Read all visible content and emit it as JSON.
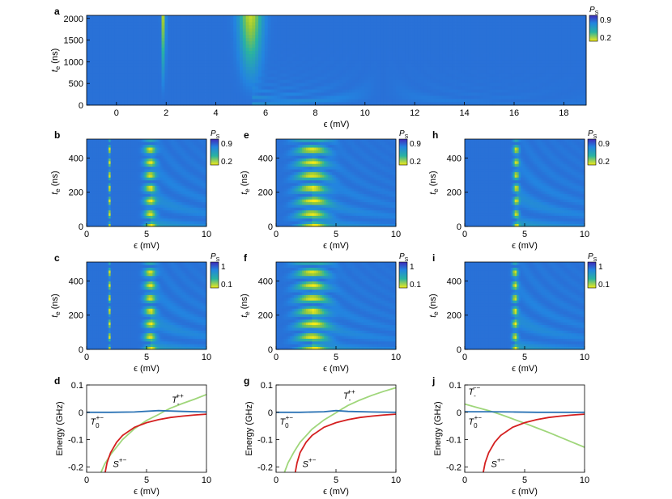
{
  "colors": {
    "map_low": "#f4ea18",
    "map_mid1": "#2ab3a0",
    "map_mid2": "#2384e0",
    "map_high": "#3e2bb8",
    "line_blue": "#2b73b5",
    "line_red": "#d41f1f",
    "line_green": "#9fd67a"
  },
  "chart_data": [
    {
      "id": "a",
      "type": "heatmap",
      "letter": "a",
      "xlabel": "ϵ (mV)",
      "ylabel_main": "t",
      "ylabel_sub": "e",
      "ylabel_unit": " (ns)",
      "xlim": [
        -1.2,
        18.9
      ],
      "ylim": [
        0,
        2070
      ],
      "xticks": [
        0,
        2,
        4,
        6,
        8,
        10,
        12,
        14,
        16,
        18
      ],
      "yticks": [
        0,
        500,
        1000,
        1500,
        2000
      ],
      "resonances": [
        {
          "eps": 1.9,
          "width": 0.05,
          "k": 0.35
        },
        {
          "eps": 5.4,
          "width": 0.3,
          "k": 0.6
        }
      ],
      "colorbar": {
        "label_main": "P",
        "label_sub": "S",
        "ticks": [
          0.9,
          0.2
        ]
      }
    },
    {
      "id": "b",
      "type": "heatmap",
      "letter": "b",
      "xlabel": "ϵ (mV)",
      "ylabel_main": "t",
      "ylabel_sub": "e",
      "ylabel_unit": " (ns)",
      "xlim": [
        0,
        10
      ],
      "ylim": [
        0,
        510
      ],
      "xticks": [
        0,
        5,
        10
      ],
      "yticks": [
        0,
        200,
        400
      ],
      "resonances": [
        {
          "eps": 1.9,
          "width": 0.06,
          "k": 0.35
        },
        {
          "eps": 5.3,
          "width": 0.32,
          "k": 0.5
        }
      ],
      "colorbar": {
        "label_main": "P",
        "label_sub": "S",
        "ticks": [
          0.9,
          0.2
        ]
      }
    },
    {
      "id": "e",
      "type": "heatmap",
      "letter": "e",
      "xlabel": "ϵ (mV)",
      "ylabel_main": "t",
      "ylabel_sub": "e",
      "ylabel_unit": " (ns)",
      "xlim": [
        0,
        10
      ],
      "ylim": [
        0,
        510
      ],
      "xticks": [
        0,
        5,
        10
      ],
      "yticks": [
        0,
        200,
        400
      ],
      "resonances": [
        {
          "eps": 3.0,
          "width": 0.85,
          "k": 0.5
        }
      ],
      "colorbar": {
        "label_main": "P",
        "label_sub": "S",
        "ticks": [
          0.9,
          0.2
        ]
      }
    },
    {
      "id": "h",
      "type": "heatmap",
      "letter": "h",
      "xlabel": "ϵ (mV)",
      "ylabel_main": "t",
      "ylabel_sub": "e",
      "ylabel_unit": " (ns)",
      "xlim": [
        0,
        10
      ],
      "ylim": [
        0,
        510
      ],
      "xticks": [
        0,
        5,
        10
      ],
      "yticks": [
        0,
        200,
        400
      ],
      "resonances": [
        {
          "eps": 4.3,
          "width": 0.16,
          "k": 0.9
        }
      ],
      "colorbar": {
        "label_main": "P",
        "label_sub": "S",
        "ticks": [
          0.9,
          0.2
        ]
      }
    },
    {
      "id": "c",
      "type": "heatmap",
      "letter": "c",
      "xlabel": "ϵ (mV)",
      "ylabel_main": "t",
      "ylabel_sub": "e",
      "ylabel_unit": " (ns)",
      "xlim": [
        0,
        10
      ],
      "ylim": [
        0,
        510
      ],
      "xticks": [
        0,
        5,
        10
      ],
      "yticks": [
        0,
        200,
        400
      ],
      "resonances": [
        {
          "eps": 1.9,
          "width": 0.06,
          "k": 0.35
        },
        {
          "eps": 5.3,
          "width": 0.32,
          "k": 0.5
        }
      ],
      "colorbar": {
        "label_main": "P",
        "label_sub": "S",
        "ticks": [
          1,
          0.1
        ]
      }
    },
    {
      "id": "f",
      "type": "heatmap",
      "letter": "f",
      "xlabel": "ϵ (mV)",
      "ylabel_main": "t",
      "ylabel_sub": "e",
      "ylabel_unit": " (ns)",
      "xlim": [
        0,
        10
      ],
      "ylim": [
        0,
        510
      ],
      "xticks": [
        0,
        5,
        10
      ],
      "yticks": [
        0,
        200,
        400
      ],
      "resonances": [
        {
          "eps": 3.0,
          "width": 0.85,
          "k": 0.5
        }
      ],
      "colorbar": {
        "label_main": "P",
        "label_sub": "S",
        "ticks": [
          1,
          0.1
        ]
      }
    },
    {
      "id": "i",
      "type": "heatmap",
      "letter": "i",
      "xlabel": "ϵ (mV)",
      "ylabel_main": "t",
      "ylabel_sub": "e",
      "ylabel_unit": " (ns)",
      "xlim": [
        0,
        10
      ],
      "ylim": [
        0,
        510
      ],
      "xticks": [
        0,
        5,
        10
      ],
      "yticks": [
        0,
        200,
        400
      ],
      "resonances": [
        {
          "eps": 4.2,
          "width": 0.16,
          "k": 0.9
        }
      ],
      "colorbar": {
        "label_main": "P",
        "label_sub": "S",
        "ticks": [
          1,
          0.1
        ]
      }
    },
    {
      "id": "d",
      "type": "line",
      "letter": "d",
      "xlabel": "ϵ (mV)",
      "ylabel": "Energy (GHz)",
      "xlim": [
        0,
        10
      ],
      "ylim": [
        -0.22,
        0.1
      ],
      "xticks": [
        0,
        5,
        10
      ],
      "yticks": [
        0.1,
        0,
        -0.1,
        -0.2
      ],
      "series": [
        {
          "color": "blue",
          "x": [
            0,
            2,
            4,
            6,
            8,
            10
          ],
          "y": [
            0,
            0,
            0.001,
            0.006,
            0.003,
            0.001
          ]
        },
        {
          "color": "red",
          "x": [
            1.55,
            1.7,
            2.0,
            2.5,
            3.0,
            4.0,
            5.0,
            6.0,
            7.0,
            8.0,
            9.0,
            10.0
          ],
          "y": [
            -0.22,
            -0.185,
            -0.148,
            -0.11,
            -0.085,
            -0.055,
            -0.038,
            -0.027,
            -0.019,
            -0.014,
            -0.01,
            -0.007
          ]
        },
        {
          "color": "green",
          "x": [
            1.2,
            1.5,
            2.0,
            3.0,
            4.0,
            5.0,
            6.0,
            6.5,
            7.0,
            8.0,
            9.0,
            10.0
          ],
          "y": [
            -0.22,
            -0.19,
            -0.155,
            -0.1,
            -0.06,
            -0.03,
            -0.008,
            0.004,
            0.015,
            0.032,
            0.048,
            0.065
          ]
        }
      ],
      "annotations": [
        {
          "main": "T",
          "sup": "++",
          "sub": "-",
          "x": 7.1,
          "y": 0.035
        },
        {
          "main": "T",
          "sup": "+−",
          "sub": "0",
          "x": 0.3,
          "y": -0.045
        },
        {
          "main": "S",
          "sup": "+−",
          "sub": "",
          "x": 2.2,
          "y": -0.2
        }
      ]
    },
    {
      "id": "g",
      "type": "line",
      "letter": "g",
      "xlabel": "ϵ (mV)",
      "ylabel": "Energy (GHz)",
      "xlim": [
        0,
        10
      ],
      "ylim": [
        -0.22,
        0.1
      ],
      "xticks": [
        0,
        5,
        10
      ],
      "yticks": [
        0.1,
        0,
        -0.1,
        -0.2
      ],
      "series": [
        {
          "color": "blue",
          "x": [
            0,
            2,
            4,
            5,
            6,
            8,
            10
          ],
          "y": [
            0,
            0,
            0.002,
            0.006,
            0.003,
            0.001,
            0
          ]
        },
        {
          "color": "red",
          "x": [
            1.6,
            1.75,
            2.0,
            2.5,
            3.0,
            4.0,
            5.0,
            6.0,
            7.0,
            8.0,
            9.0,
            10.0
          ],
          "y": [
            -0.22,
            -0.185,
            -0.148,
            -0.11,
            -0.085,
            -0.055,
            -0.038,
            -0.027,
            -0.019,
            -0.014,
            -0.01,
            -0.007
          ]
        },
        {
          "color": "green",
          "x": [
            0.7,
            1.0,
            1.5,
            2.0,
            3.0,
            4.0,
            5.0,
            5.5,
            6.0,
            7.0,
            8.0,
            9.0,
            10.0
          ],
          "y": [
            -0.22,
            -0.185,
            -0.145,
            -0.11,
            -0.062,
            -0.028,
            -0.002,
            0.012,
            0.025,
            0.045,
            0.062,
            0.077,
            0.09
          ]
        }
      ],
      "annotations": [
        {
          "main": "T",
          "sup": "++",
          "sub": "-",
          "x": 5.6,
          "y": 0.05
        },
        {
          "main": "T",
          "sup": "+−",
          "sub": "0",
          "x": 0.3,
          "y": -0.045
        },
        {
          "main": "S",
          "sup": "+−",
          "sub": "",
          "x": 2.2,
          "y": -0.2
        }
      ]
    },
    {
      "id": "j",
      "type": "line",
      "letter": "j",
      "xlabel": "ϵ (mV)",
      "ylabel": "Energy (GHz)",
      "xlim": [
        0,
        10
      ],
      "ylim": [
        -0.22,
        0.1
      ],
      "xticks": [
        0,
        5,
        10
      ],
      "yticks": [
        0.1,
        0,
        -0.1,
        -0.2
      ],
      "series": [
        {
          "color": "blue",
          "x": [
            0,
            2,
            4,
            6,
            8,
            10
          ],
          "y": [
            0.002,
            0.002,
            0.001,
            0,
            0,
            0
          ]
        },
        {
          "color": "red",
          "x": [
            1.55,
            1.7,
            2.0,
            2.5,
            3.0,
            4.0,
            5.0,
            6.0,
            7.0,
            8.0,
            9.0,
            10.0
          ],
          "y": [
            -0.22,
            -0.185,
            -0.148,
            -0.11,
            -0.085,
            -0.055,
            -0.038,
            -0.027,
            -0.019,
            -0.014,
            -0.01,
            -0.007
          ]
        },
        {
          "color": "green",
          "x": [
            0,
            1,
            2,
            3,
            4,
            5,
            6,
            7,
            8,
            9,
            10
          ],
          "y": [
            0.03,
            0.018,
            0.006,
            -0.008,
            -0.024,
            -0.04,
            -0.057,
            -0.074,
            -0.092,
            -0.11,
            -0.128
          ]
        }
      ],
      "annotations": [
        {
          "main": "T",
          "sup": "−−",
          "sub": "-",
          "x": 0.3,
          "y": 0.065
        },
        {
          "main": "T",
          "sup": "+−",
          "sub": "0",
          "x": 0.3,
          "y": -0.045
        },
        {
          "main": "S",
          "sup": "+−",
          "sub": "",
          "x": 2.2,
          "y": -0.2
        }
      ]
    }
  ]
}
